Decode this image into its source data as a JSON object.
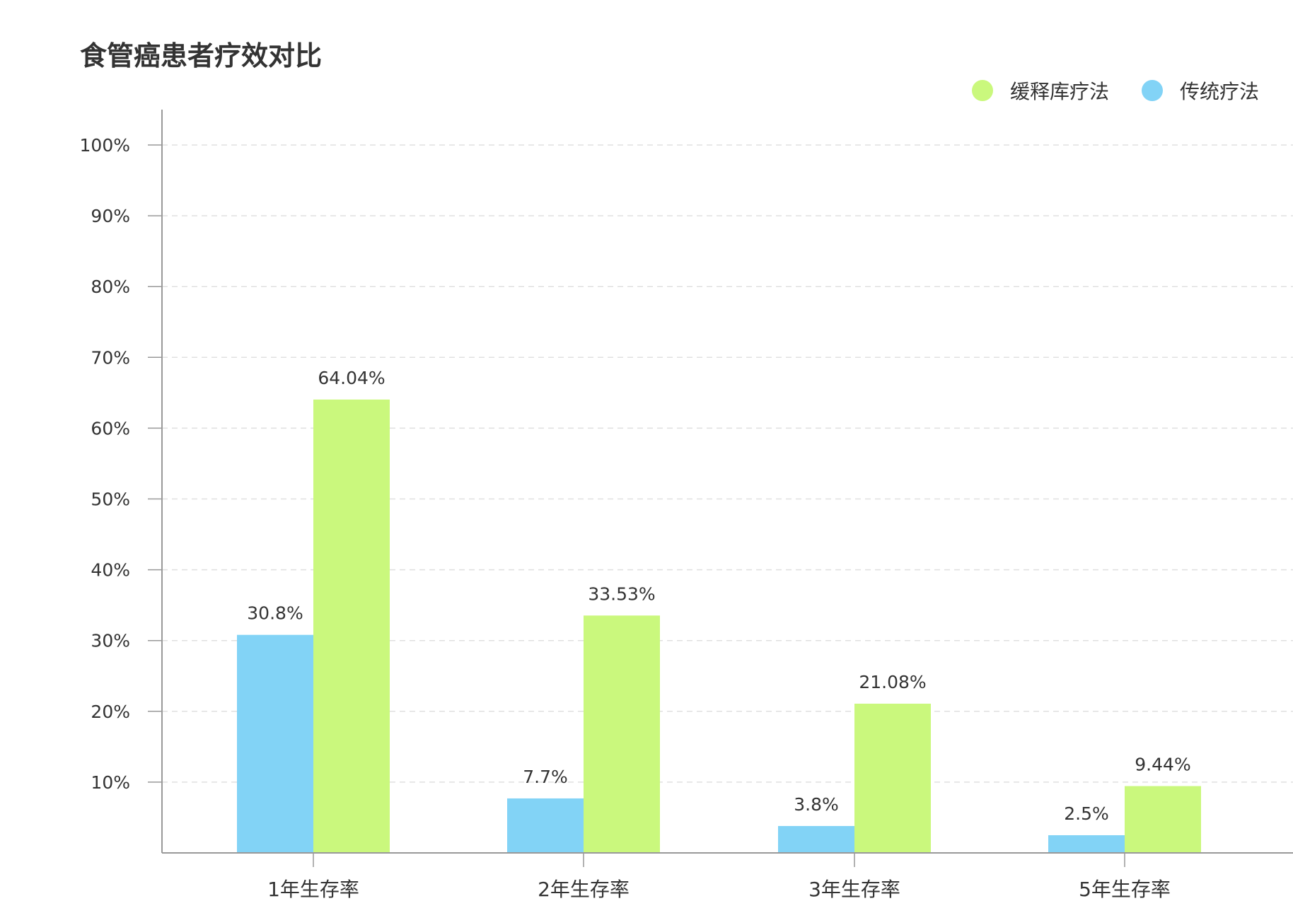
{
  "chart_data": {
    "type": "bar",
    "title": "食管癌患者疗效对比",
    "categories": [
      "1年生存率",
      "2年生存率",
      "3年生存率",
      "5年生存率"
    ],
    "series": [
      {
        "name": "传统疗法",
        "color": "#82d3f6",
        "values": [
          30.8,
          7.7,
          3.8,
          2.5
        ],
        "labels": [
          "30.8%",
          "7.7%",
          "3.8%",
          "2.5%"
        ]
      },
      {
        "name": "缓释库疗法",
        "color": "#caf87d",
        "values": [
          64.04,
          33.53,
          21.08,
          9.44
        ],
        "labels": [
          "64.04%",
          "33.53%",
          "21.08%",
          "9.44%"
        ]
      }
    ],
    "legend_order": [
      1,
      0
    ],
    "ylim": [
      0,
      100
    ],
    "yticks": [
      10,
      20,
      30,
      40,
      50,
      60,
      70,
      80,
      90,
      100
    ],
    "ytick_labels": [
      "10%",
      "20%",
      "30%",
      "40%",
      "50%",
      "60%",
      "70%",
      "80%",
      "90%",
      "100%"
    ],
    "grid": true,
    "legend_position": "top-right",
    "colors": {
      "axis": "#999999",
      "grid": "#e0e0e0",
      "text": "#333333"
    }
  }
}
